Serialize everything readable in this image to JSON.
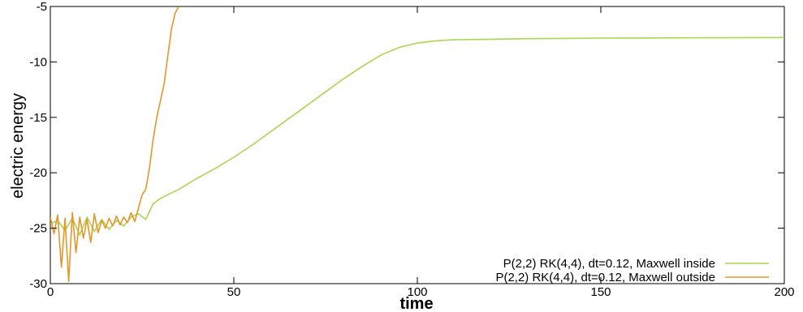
{
  "chart_data": {
    "type": "line",
    "xlabel": "time",
    "ylabel": "electric energy",
    "xlim": [
      0,
      200
    ],
    "ylim": [
      -30,
      -5
    ],
    "x_ticks": [
      "0",
      "50",
      "100",
      "150",
      "200"
    ],
    "y_ticks": [
      "-5",
      "-10",
      "-15",
      "-20",
      "-25",
      "-30"
    ],
    "grid": false,
    "legend_position": "bottom-right",
    "series": [
      {
        "name": "P(2,2) RK(4,4), dt=0.12, Maxwell inside",
        "color": "#a8d84e",
        "x": [
          0,
          2,
          4,
          6,
          8,
          10,
          12,
          14,
          16,
          18,
          20,
          22,
          24,
          26,
          28,
          30,
          35,
          40,
          45,
          50,
          55,
          60,
          65,
          70,
          75,
          80,
          85,
          90,
          95,
          100,
          105,
          110,
          120,
          130,
          140,
          150,
          160,
          170,
          180,
          190,
          200
        ],
        "y": [
          -24.6,
          -24.3,
          -25.2,
          -24.1,
          -25.6,
          -24.0,
          -25.3,
          -24.2,
          -25.1,
          -24.3,
          -24.8,
          -24.0,
          -23.7,
          -24.2,
          -22.8,
          -22.3,
          -21.5,
          -20.5,
          -19.6,
          -18.6,
          -17.5,
          -16.3,
          -15.1,
          -13.9,
          -12.7,
          -11.5,
          -10.4,
          -9.4,
          -8.7,
          -8.3,
          -8.1,
          -8.0,
          -7.95,
          -7.9,
          -7.88,
          -7.85,
          -7.84,
          -7.83,
          -7.82,
          -7.81,
          -7.8
        ]
      },
      {
        "name": "P(2,2) RK(4,4), dt=0.12, Maxwell outside",
        "color": "#e8962a",
        "x": [
          0,
          1,
          2,
          3,
          4,
          5,
          6,
          7,
          8,
          9,
          10,
          11,
          12,
          13,
          14,
          15,
          16,
          17,
          18,
          19,
          20,
          21,
          22,
          23,
          24,
          25,
          26,
          27,
          28,
          29,
          30,
          31,
          32,
          33,
          34,
          35
        ],
        "y": [
          -24.0,
          -25.5,
          -23.8,
          -28.5,
          -24.1,
          -29.8,
          -23.6,
          -27.2,
          -24.0,
          -25.9,
          -24.2,
          -26.3,
          -23.7,
          -25.4,
          -24.3,
          -25.0,
          -24.1,
          -24.8,
          -23.9,
          -24.7,
          -24.0,
          -24.5,
          -23.6,
          -24.4,
          -23.2,
          -22.0,
          -21.5,
          -19.6,
          -17.0,
          -15.0,
          -13.5,
          -12.0,
          -9.5,
          -7.0,
          -5.6,
          -5.0
        ]
      }
    ]
  }
}
